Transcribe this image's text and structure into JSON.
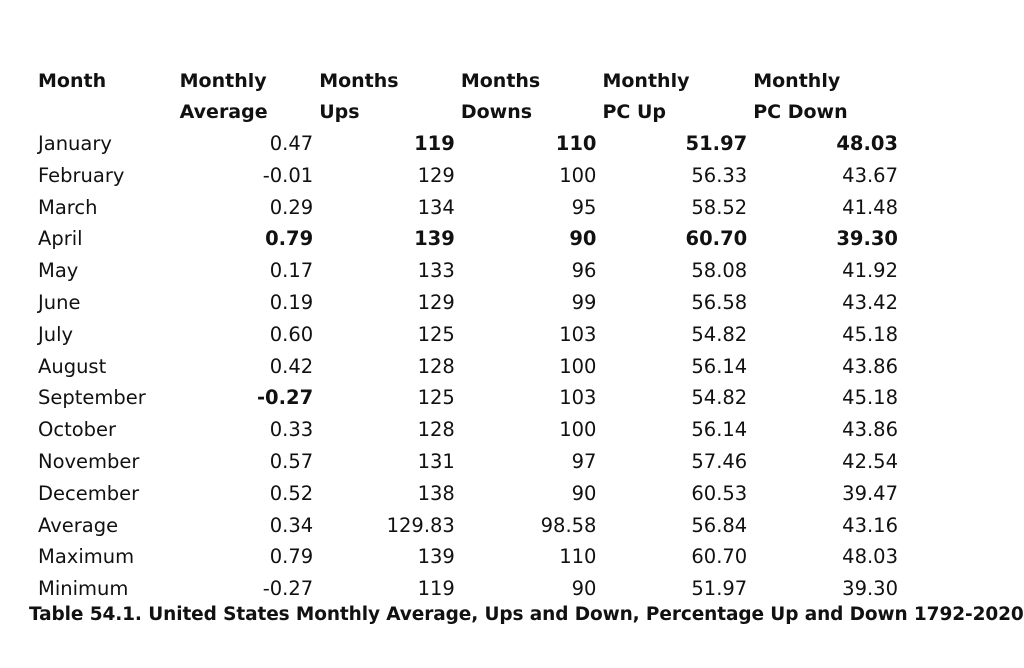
{
  "table": {
    "columns": [
      {
        "line1": "Month",
        "line2": ""
      },
      {
        "line1": "Monthly",
        "line2": "Average"
      },
      {
        "line1": "Months",
        "line2": "Ups"
      },
      {
        "line1": "Months",
        "line2": "Downs"
      },
      {
        "line1": "Monthly",
        "line2": "PC Up"
      },
      {
        "line1": "Monthly",
        "line2": "PC Down"
      }
    ],
    "rows": [
      {
        "month": "January",
        "avg": "0.47",
        "ups": "119",
        "downs": "110",
        "pc_up": "51.97",
        "pc_down": "48.03"
      },
      {
        "month": "February",
        "avg": "-0.01",
        "ups": "129",
        "downs": "100",
        "pc_up": "56.33",
        "pc_down": "43.67"
      },
      {
        "month": "March",
        "avg": "0.29",
        "ups": "134",
        "downs": "95",
        "pc_up": "58.52",
        "pc_down": "41.48"
      },
      {
        "month": "April",
        "avg": "0.79",
        "ups": "139",
        "downs": "90",
        "pc_up": "60.70",
        "pc_down": "39.30"
      },
      {
        "month": "May",
        "avg": "0.17",
        "ups": "133",
        "downs": "96",
        "pc_up": "58.08",
        "pc_down": "41.92"
      },
      {
        "month": "June",
        "avg": "0.19",
        "ups": "129",
        "downs": "99",
        "pc_up": "56.58",
        "pc_down": "43.42"
      },
      {
        "month": "July",
        "avg": "0.60",
        "ups": "125",
        "downs": "103",
        "pc_up": "54.82",
        "pc_down": "45.18"
      },
      {
        "month": "August",
        "avg": "0.42",
        "ups": "128",
        "downs": "100",
        "pc_up": "56.14",
        "pc_down": "43.86"
      },
      {
        "month": "September",
        "avg": "-0.27",
        "ups": "125",
        "downs": "103",
        "pc_up": "54.82",
        "pc_down": "45.18"
      },
      {
        "month": "October",
        "avg": "0.33",
        "ups": "128",
        "downs": "100",
        "pc_up": "56.14",
        "pc_down": "43.86"
      },
      {
        "month": "November",
        "avg": "0.57",
        "ups": "131",
        "downs": "97",
        "pc_up": "57.46",
        "pc_down": "42.54"
      },
      {
        "month": "December",
        "avg": "0.52",
        "ups": "138",
        "downs": "90",
        "pc_up": "60.53",
        "pc_down": "39.47"
      },
      {
        "month": "Average",
        "avg": "0.34",
        "ups": "129.83",
        "downs": "98.58",
        "pc_up": "56.84",
        "pc_down": "43.16"
      },
      {
        "month": "Maximum",
        "avg": "0.79",
        "ups": "139",
        "downs": "110",
        "pc_up": "60.70",
        "pc_down": "48.03"
      },
      {
        "month": "Minimum",
        "avg": "-0.27",
        "ups": "119",
        "downs": "90",
        "pc_up": "51.97",
        "pc_down": "39.30"
      }
    ]
  },
  "caption": "Table 54.1. United States Monthly Average, Ups and Down, Percentage Up and Down 1792-2020"
}
